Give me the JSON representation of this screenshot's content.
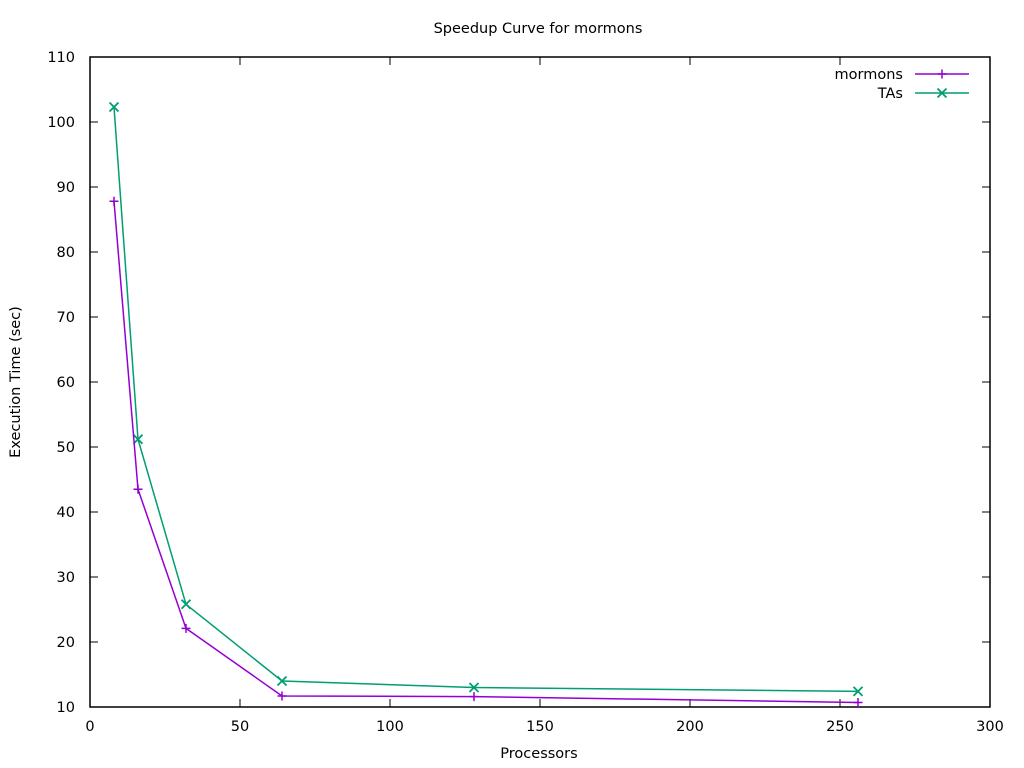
{
  "chart_data": {
    "type": "line",
    "title": "Speedup Curve for mormons",
    "xlabel": "Processors",
    "ylabel": "Execution Time (sec)",
    "xlim": [
      0,
      300
    ],
    "ylim": [
      10,
      110
    ],
    "xticks": [
      0,
      50,
      100,
      150,
      200,
      250,
      300
    ],
    "yticks": [
      10,
      20,
      30,
      40,
      50,
      60,
      70,
      80,
      90,
      100,
      110
    ],
    "grid": false,
    "legend_position": "top-right",
    "series": [
      {
        "name": "mormons",
        "color": "#9400d3",
        "marker": "plus",
        "x": [
          8,
          16,
          32,
          64,
          128,
          256
        ],
        "y": [
          87.8,
          43.5,
          22.1,
          11.7,
          11.6,
          10.7
        ]
      },
      {
        "name": "TAs",
        "color": "#009e73",
        "marker": "cross",
        "x": [
          8,
          16,
          32,
          64,
          128,
          256
        ],
        "y": [
          102.3,
          51.2,
          25.8,
          14.0,
          13.0,
          12.4
        ]
      }
    ]
  }
}
